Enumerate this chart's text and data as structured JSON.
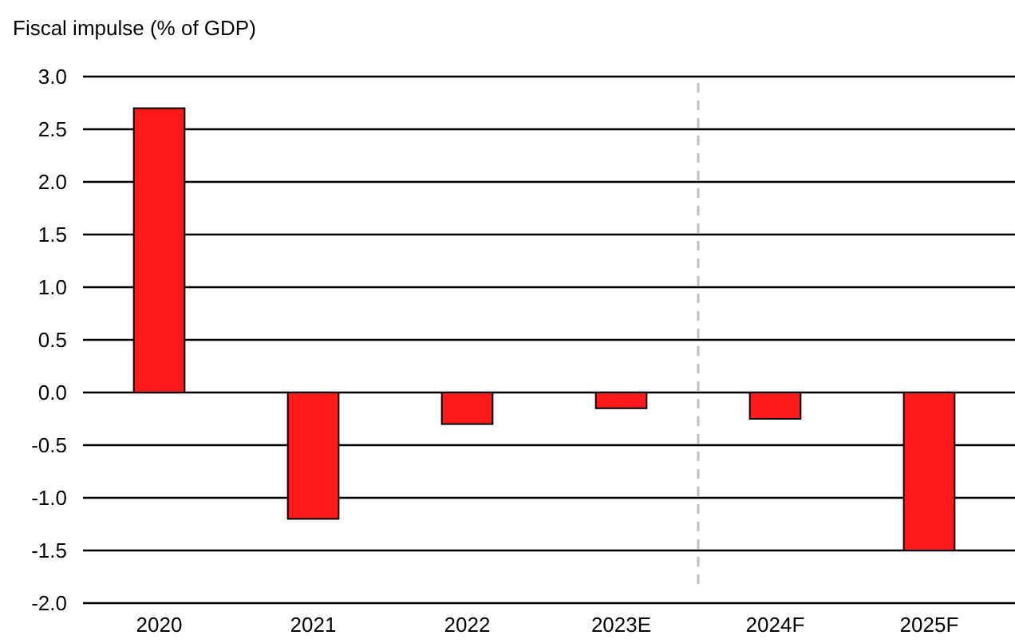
{
  "chart_data": {
    "type": "bar",
    "ylabel": "Fiscal impulse (% of GDP)",
    "categories": [
      "2020",
      "2021",
      "2022",
      "2023E",
      "2024F",
      "2025F"
    ],
    "values": [
      2.7,
      -1.2,
      -0.3,
      -0.15,
      -0.25,
      -1.5
    ],
    "color": "#fe1a1a",
    "ylim": [
      -2,
      3
    ],
    "yticks": [
      {
        "value": -2,
        "label": "-2.0"
      },
      {
        "value": -1.5,
        "label": "-1.5"
      },
      {
        "value": -1,
        "label": "-1.0"
      },
      {
        "value": -0.5,
        "label": "-0.5"
      },
      {
        "value": 0,
        "label": "0.0"
      },
      {
        "value": 0.5,
        "label": "0.5"
      },
      {
        "value": 1,
        "label": "1.0"
      },
      {
        "value": 1.5,
        "label": "1.5"
      },
      {
        "value": 2,
        "label": "2.0"
      },
      {
        "value": 2.5,
        "label": "2.5"
      },
      {
        "value": 3,
        "label": "3.0"
      }
    ],
    "grid": "y"
  }
}
